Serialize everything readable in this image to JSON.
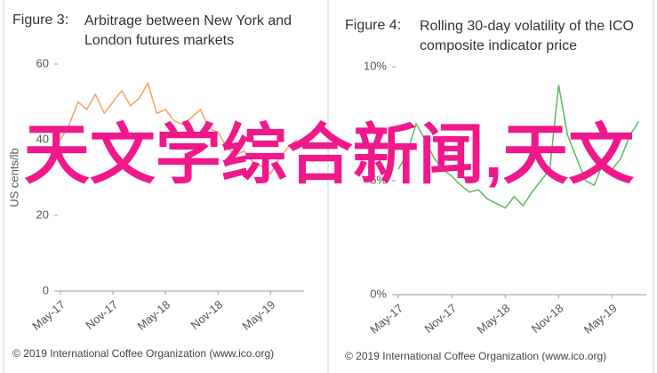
{
  "chart_data": [
    {
      "type": "line",
      "figure_label": "Figure 3:",
      "title": "Arbitrage between New York and London futures markets",
      "y_label": "US cents/lb",
      "x": [
        "May-17",
        null,
        null,
        null,
        null,
        null,
        "Nov-17",
        null,
        null,
        null,
        null,
        null,
        "May-18",
        null,
        null,
        null,
        null,
        null,
        "Nov-18",
        null,
        null,
        null,
        null,
        null,
        "May-19",
        null,
        null,
        null
      ],
      "series": [
        {
          "color": "#f4a261",
          "values": [
            40,
            44,
            50,
            48,
            52,
            47,
            50,
            53,
            49,
            51,
            55,
            47,
            48,
            45,
            44,
            46,
            48,
            43,
            42,
            38,
            36,
            37,
            34,
            33,
            31,
            35,
            38,
            40
          ]
        }
      ],
      "ylim": [
        0,
        60
      ],
      "yticks": [
        0,
        20,
        40,
        60
      ],
      "source": "© 2019 International Coffee Organization (www.ico.org)"
    },
    {
      "type": "line",
      "figure_label": "Figure 4:",
      "title": "Rolling 30-day volatility of the ICO composite indicator price",
      "x": [
        "May-17",
        null,
        null,
        null,
        null,
        null,
        "Nov-17",
        null,
        null,
        null,
        null,
        null,
        "May-18",
        null,
        null,
        null,
        null,
        null,
        "Nov-18",
        null,
        null,
        null,
        null,
        null,
        "May-19",
        null,
        null,
        null
      ],
      "series": [
        {
          "color": "#5cb85c",
          "values": [
            5.5,
            6.2,
            7.5,
            6.8,
            6.0,
            5.5,
            5.2,
            4.8,
            4.5,
            4.6,
            4.2,
            4.0,
            3.8,
            4.3,
            3.9,
            4.5,
            5.0,
            5.5,
            9.2,
            7.0,
            6.0,
            5.0,
            4.8,
            5.8,
            5.5,
            6.0,
            7.0,
            7.6
          ]
        }
      ],
      "ylim": [
        0,
        10
      ],
      "yticks": [
        {
          "value": 0,
          "label": "0%"
        },
        {
          "value": 5,
          "label": "5%"
        },
        {
          "value": 10,
          "label": "10%"
        }
      ],
      "source": "© 2019 International Coffee Organization (www.ico.org)"
    }
  ],
  "overlay": "天文学综合新闻,天文"
}
